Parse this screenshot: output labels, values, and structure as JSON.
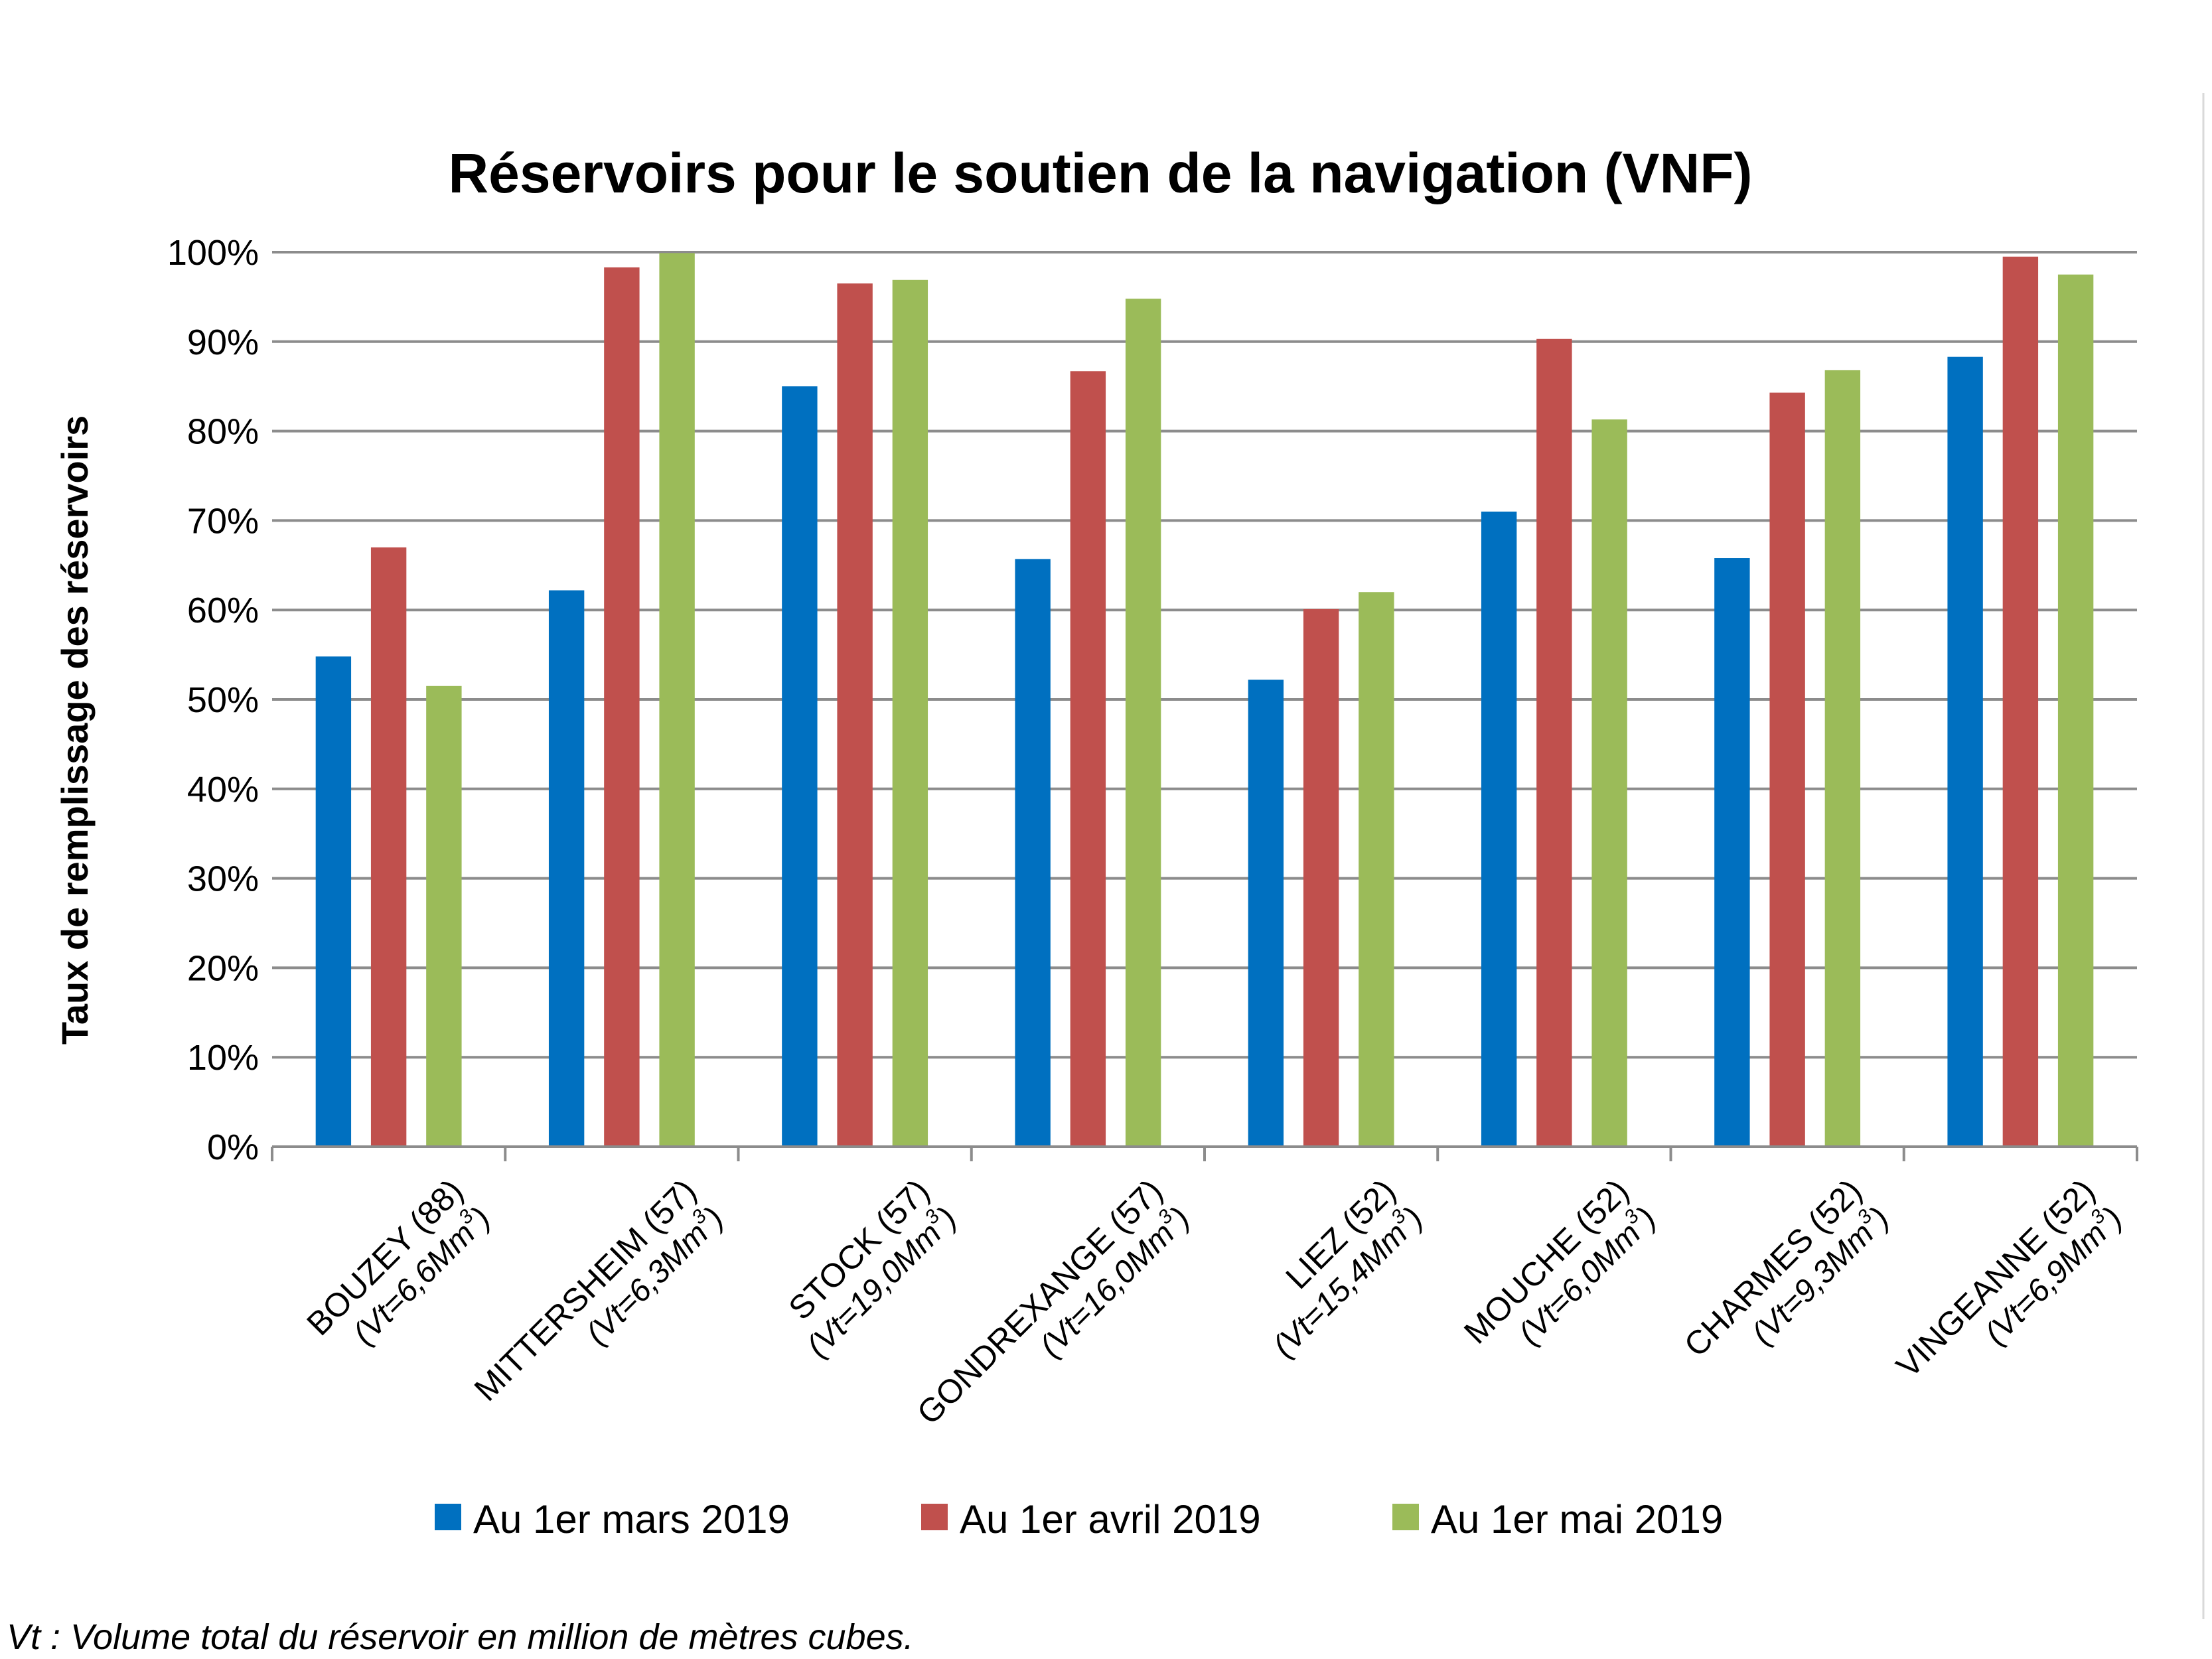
{
  "chart_data": {
    "type": "bar",
    "title": "Réservoirs pour le soutien de la navigation (VNF)",
    "ylabel": "Taux de remplissage des réservoirs",
    "xlabel": "",
    "ylim": [
      0,
      100
    ],
    "y_ticks": [
      "0%",
      "10%",
      "20%",
      "30%",
      "40%",
      "50%",
      "60%",
      "70%",
      "80%",
      "90%",
      "100%"
    ],
    "grid": true,
    "legend_position": "bottom",
    "categories": [
      {
        "name": "BOUZEY (88)",
        "volume": "(Vt=6,6Mm",
        "volume_sup": "3",
        "volume_end": ")"
      },
      {
        "name": "MITTERSHEIM (57)",
        "volume": "(Vt=6,3Mm",
        "volume_sup": "3",
        "volume_end": ")"
      },
      {
        "name": "STOCK (57)",
        "volume": "(Vt=19,0Mm",
        "volume_sup": "3",
        "volume_end": ")"
      },
      {
        "name": "GONDREXANGE (57)",
        "volume": "(Vt=16,0Mm",
        "volume_sup": "3",
        "volume_end": ")"
      },
      {
        "name": "LIEZ (52)",
        "volume": "(Vt=15,4Mm",
        "volume_sup": "3",
        "volume_end": ")"
      },
      {
        "name": "MOUCHE (52)",
        "volume": "(Vt=6,0Mm",
        "volume_sup": "3",
        "volume_end": ")"
      },
      {
        "name": "CHARMES (52)",
        "volume": "(Vt=9,3Mm",
        "volume_sup": "3",
        "volume_end": ")"
      },
      {
        "name": "VINGEANNE (52)",
        "volume": "(Vt=6,9Mm",
        "volume_sup": "3",
        "volume_end": ")"
      }
    ],
    "series": [
      {
        "name": "Au 1er mars 2019",
        "color": "#0070C0",
        "values": [
          54.8,
          62.2,
          85.0,
          65.7,
          52.2,
          71.0,
          65.8,
          88.3
        ]
      },
      {
        "name": "Au 1er avril 2019",
        "color": "#C0504D",
        "values": [
          67.0,
          98.3,
          96.5,
          86.7,
          60.1,
          90.3,
          84.3,
          99.5
        ]
      },
      {
        "name": "Au 1er mai 2019",
        "color": "#9BBB59",
        "values": [
          51.5,
          99.9,
          96.9,
          94.8,
          62.0,
          81.3,
          86.8,
          97.5
        ]
      }
    ],
    "footnote": "Vt : Volume total du réservoir en million de mètres cubes."
  }
}
